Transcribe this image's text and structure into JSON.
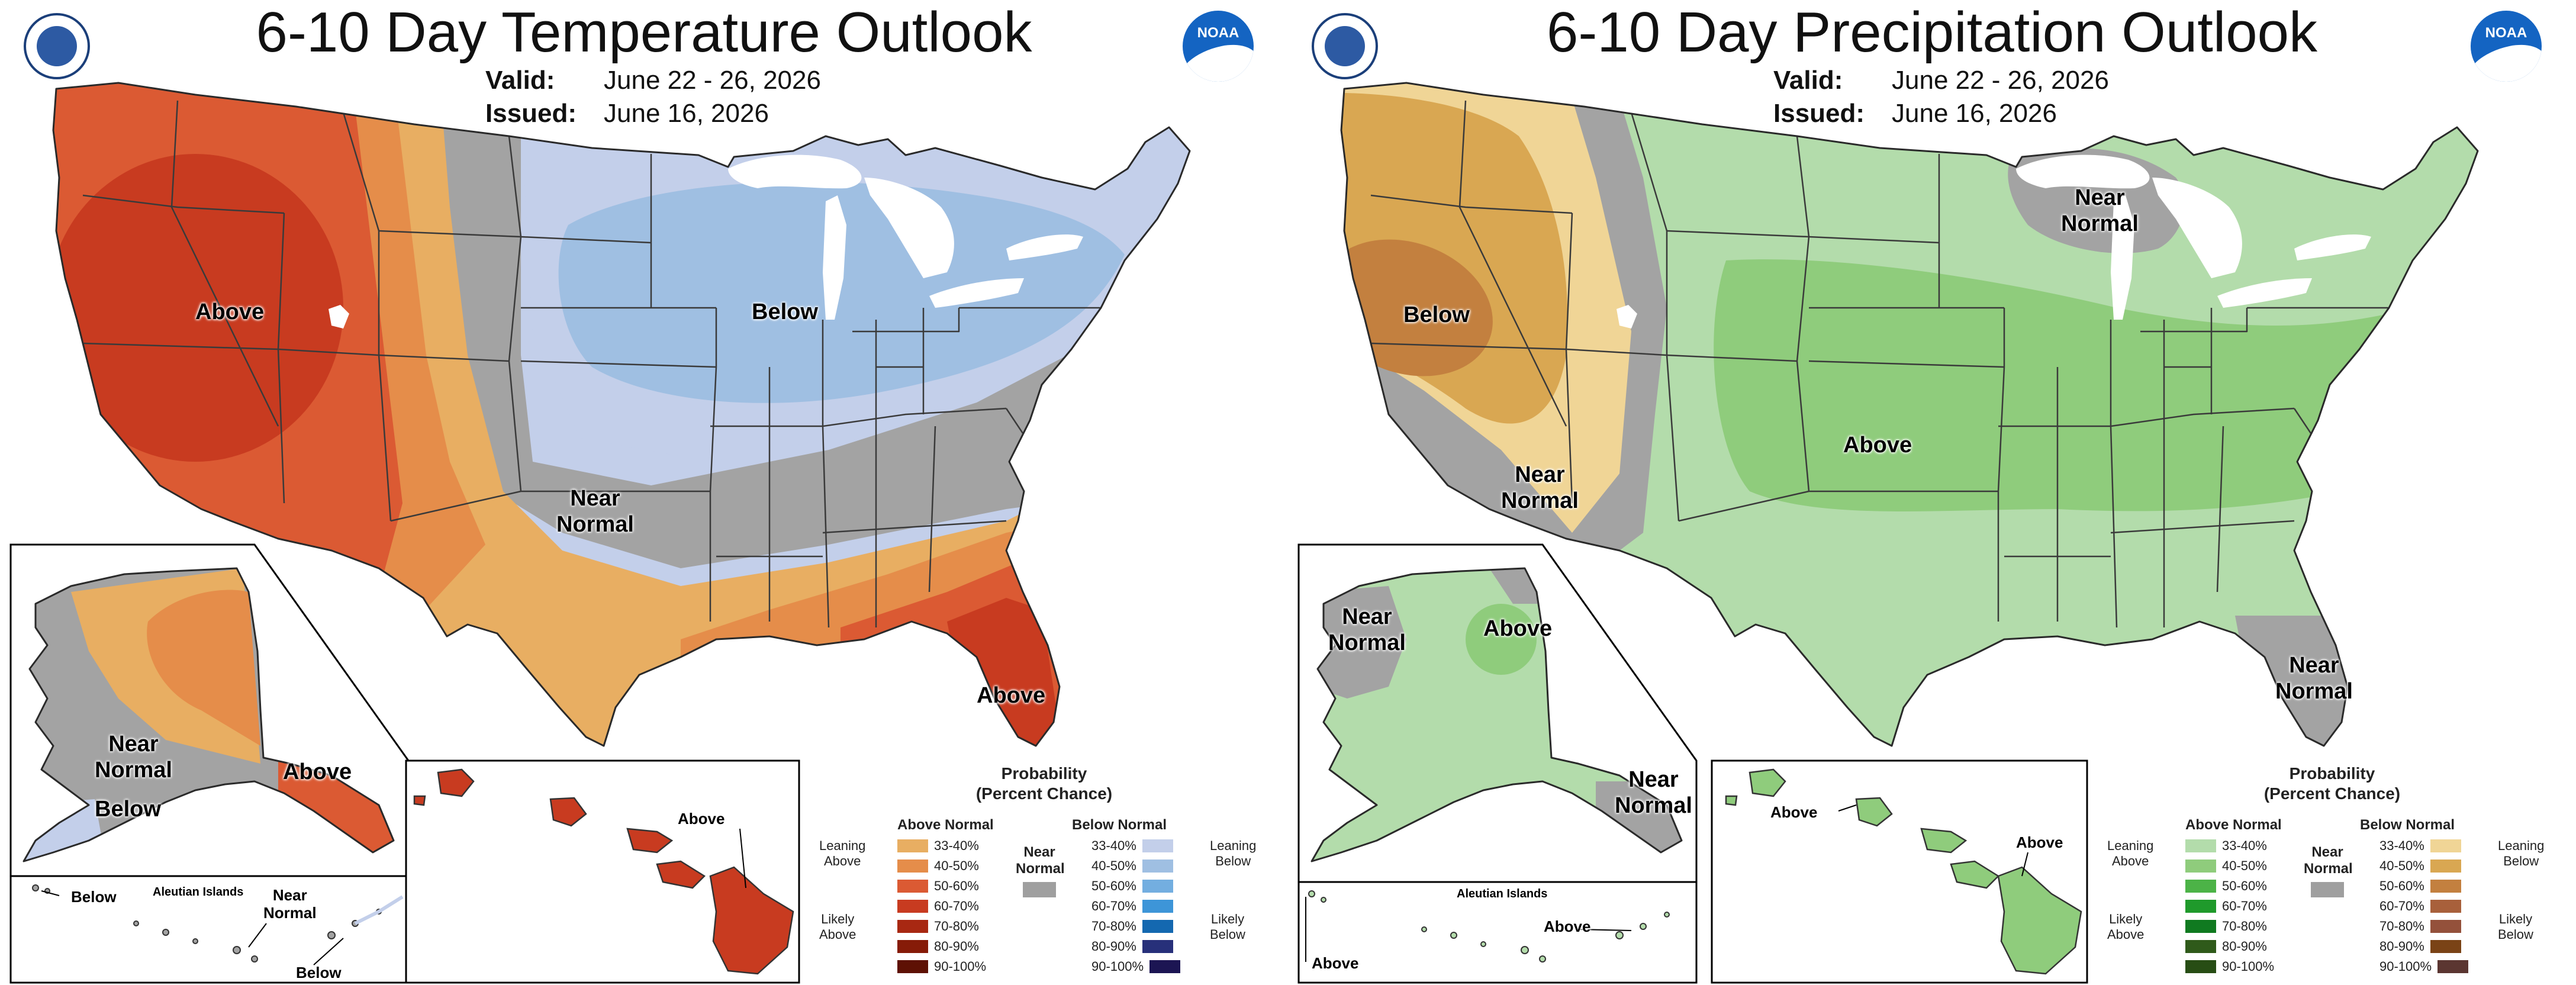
{
  "panels": [
    {
      "title": "6-10 Day Temperature Outlook",
      "valid_label": "Valid:",
      "valid_value": "June 22 - 26, 2026",
      "issued_label": "Issued:",
      "issued_value": "June 16, 2026",
      "map_labels": {
        "conus_above": "Above",
        "conus_below": "Below",
        "conus_near": "Near\nNormal",
        "florida_above": "Above",
        "alaska_near": "Near\nNormal",
        "alaska_below": "Below",
        "alaska_above": "Above",
        "aleutian_title": "Aleutian Islands",
        "aleutian_below_left": "Below",
        "aleutian_near": "Near\nNormal",
        "aleutian_below_right": "Below",
        "hawaii_above": "Above"
      },
      "legend": {
        "title_line1": "Probability",
        "title_line2": "(Percent Chance)",
        "left_head": "Above Normal",
        "right_head": "Below Normal",
        "near_normal": "Near\nNormal",
        "left_leaning": "Leaning\nAbove",
        "left_likely": "Likely\nAbove",
        "right_leaning": "Leaning\nBelow",
        "right_likely": "Likely\nBelow",
        "left_items": [
          {
            "range": "33-40%",
            "color": "#e8ae62"
          },
          {
            "range": "40-50%",
            "color": "#e58d4a"
          },
          {
            "range": "50-60%",
            "color": "#db5a33"
          },
          {
            "range": "60-70%",
            "color": "#c83b20"
          },
          {
            "range": "70-80%",
            "color": "#a82812"
          },
          {
            "range": "80-90%",
            "color": "#861b08"
          },
          {
            "range": "90-100%",
            "color": "#5e1104"
          }
        ],
        "right_items": [
          {
            "range": "33-40%",
            "color": "#c3cfea"
          },
          {
            "range": "40-50%",
            "color": "#9fbfe2"
          },
          {
            "range": "50-60%",
            "color": "#73aee0"
          },
          {
            "range": "60-70%",
            "color": "#3d95d8"
          },
          {
            "range": "70-80%",
            "color": "#1468b0"
          },
          {
            "range": "80-90%",
            "color": "#27307a"
          },
          {
            "range": "90-100%",
            "color": "#1c1553"
          }
        ]
      }
    },
    {
      "title": "6-10 Day Precipitation Outlook",
      "valid_label": "Valid:",
      "valid_value": "June 22 - 26, 2026",
      "issued_label": "Issued:",
      "issued_value": "June 16, 2026",
      "map_labels": {
        "conus_below": "Below",
        "conus_near_west": "Near\nNormal",
        "conus_near_north": "Near\nNormal",
        "conus_above": "Above",
        "florida_near": "Near\nNormal",
        "alaska_near_west": "Near\nNormal",
        "alaska_above": "Above",
        "alaska_near_se": "Near\nNormal",
        "aleutian_title": "Aleutian Islands",
        "aleutian_above_left": "Above",
        "aleutian_above_right": "Above",
        "hawaii_above_left": "Above",
        "hawaii_above_right": "Above"
      },
      "legend": {
        "title_line1": "Probability",
        "title_line2": "(Percent Chance)",
        "left_head": "Above Normal",
        "right_head": "Below Normal",
        "near_normal": "Near\nNormal",
        "left_leaning": "Leaning\nAbove",
        "left_likely": "Likely\nAbove",
        "right_leaning": "Leaning\nBelow",
        "right_likely": "Likely\nBelow",
        "left_items": [
          {
            "range": "33-40%",
            "color": "#b3dcab"
          },
          {
            "range": "40-50%",
            "color": "#8fcc7c"
          },
          {
            "range": "50-60%",
            "color": "#4cb347"
          },
          {
            "range": "60-70%",
            "color": "#1f9a2b"
          },
          {
            "range": "70-80%",
            "color": "#107a20"
          },
          {
            "range": "80-90%",
            "color": "#2f5a1a"
          },
          {
            "range": "90-100%",
            "color": "#274d14"
          }
        ],
        "right_items": [
          {
            "range": "33-40%",
            "color": "#f0d596"
          },
          {
            "range": "40-50%",
            "color": "#d9a752"
          },
          {
            "range": "50-60%",
            "color": "#c3803f"
          },
          {
            "range": "60-70%",
            "color": "#a8603b"
          },
          {
            "range": "70-80%",
            "color": "#94513b"
          },
          {
            "range": "80-90%",
            "color": "#7a4316"
          },
          {
            "range": "90-100%",
            "color": "#5b3631"
          }
        ]
      }
    }
  ],
  "colors": {
    "near_normal": "#a3a3a3",
    "great_lakes": "#ffffff"
  }
}
